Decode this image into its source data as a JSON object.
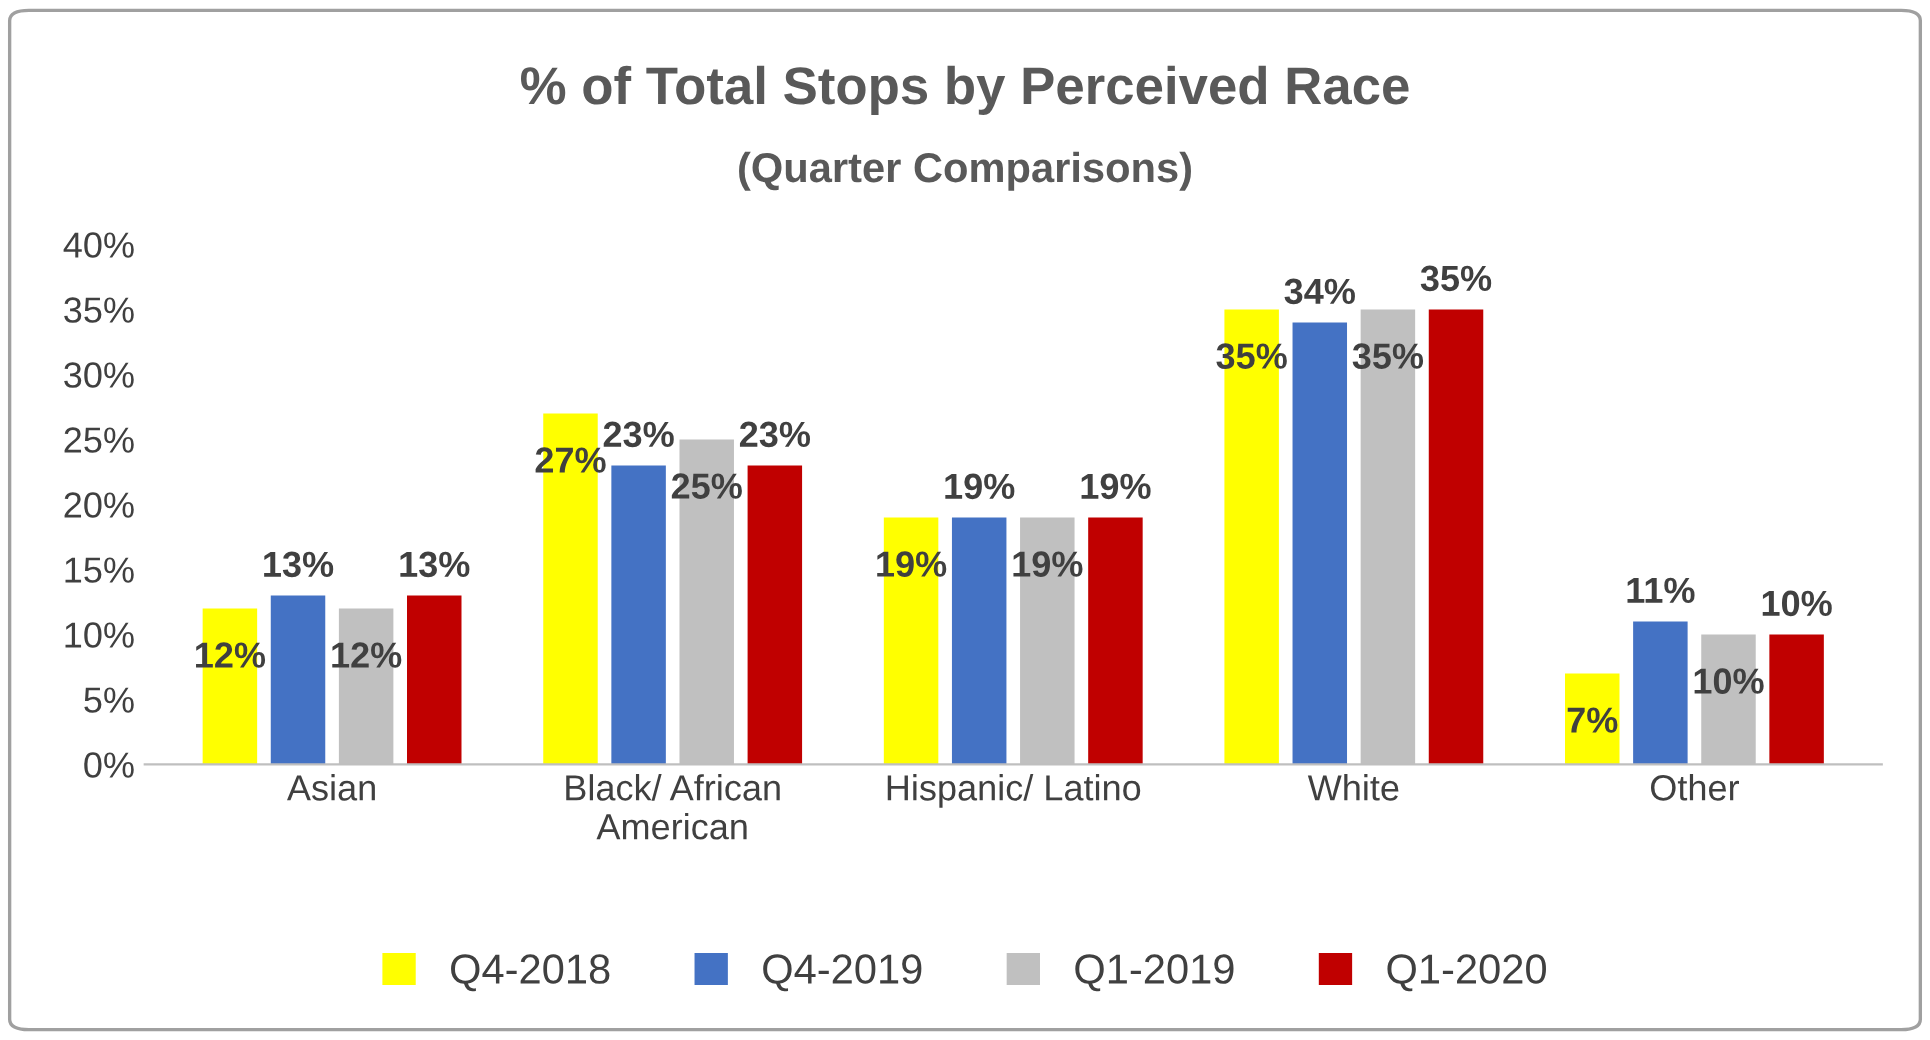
{
  "chart_data": {
    "type": "bar",
    "title": "% of Total Stops by Perceived Race",
    "subtitle": "(Quarter Comparisons)",
    "categories": [
      "Asian",
      "Black/ African\nAmerican",
      "Hispanic/ Latino",
      "White",
      "Other"
    ],
    "series": [
      {
        "name": "Q4-2018",
        "color": "#ffff00",
        "values": [
          12,
          27,
          19,
          35,
          7
        ],
        "value_labels": [
          "12%",
          "27%",
          "19%",
          "35%",
          "7%"
        ]
      },
      {
        "name": "Q4-2019",
        "color": "#4472c4",
        "values": [
          13,
          23,
          19,
          34,
          11
        ],
        "value_labels": [
          "13%",
          "23%",
          "19%",
          "34%",
          "11%"
        ]
      },
      {
        "name": "Q1-2019",
        "color": "#c0c0c0",
        "values": [
          12,
          25,
          19,
          35,
          10
        ],
        "value_labels": [
          "12%",
          "25%",
          "19%",
          "35%",
          "10%"
        ]
      },
      {
        "name": "Q1-2020",
        "color": "#c00000",
        "values": [
          13,
          23,
          19,
          35,
          10
        ],
        "value_labels": [
          "13%",
          "23%",
          "19%",
          "35%",
          "10%"
        ]
      }
    ],
    "ylim": [
      0,
      40
    ],
    "yticks": [
      {
        "value": 0,
        "label": "0%"
      },
      {
        "value": 5,
        "label": "5%"
      },
      {
        "value": 10,
        "label": "10%"
      },
      {
        "value": 15,
        "label": "15%"
      },
      {
        "value": 20,
        "label": "20%"
      },
      {
        "value": 25,
        "label": "25%"
      },
      {
        "value": 30,
        "label": "30%"
      },
      {
        "value": 35,
        "label": "35%"
      },
      {
        "value": 40,
        "label": "40%"
      }
    ],
    "grid": false,
    "legend": "bottom"
  }
}
